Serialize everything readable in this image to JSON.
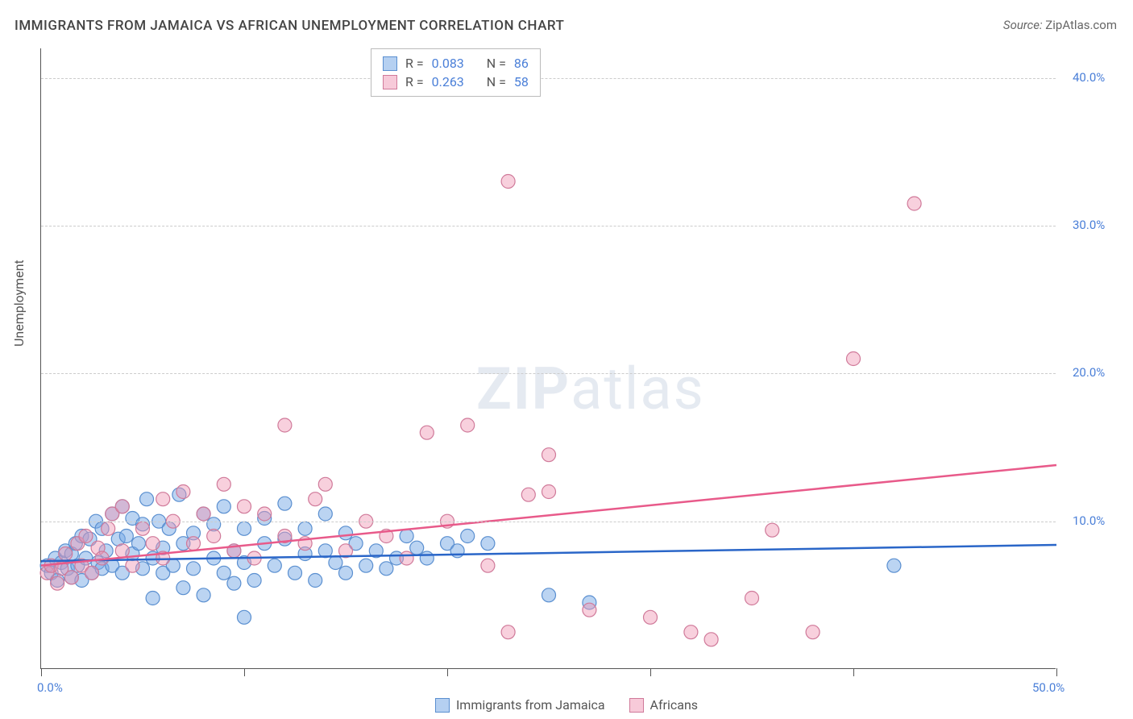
{
  "title": "IMMIGRANTS FROM JAMAICA VS AFRICAN UNEMPLOYMENT CORRELATION CHART",
  "source_label": "Source:",
  "source_value": "ZipAtlas.com",
  "y_axis_title": "Unemployment",
  "watermark_a": "ZIP",
  "watermark_b": "atlas",
  "chart": {
    "type": "scatter",
    "xlim": [
      0,
      50
    ],
    "ylim": [
      0,
      42
    ],
    "x_ticks": [
      0,
      10,
      20,
      30,
      40,
      50
    ],
    "x_tick_labels": [
      "0.0%",
      "",
      "",
      "",
      "",
      "50.0%"
    ],
    "y_ticks": [
      10,
      20,
      30,
      40
    ],
    "y_tick_labels": [
      "10.0%",
      "20.0%",
      "30.0%",
      "40.0%"
    ],
    "grid_color": "#cccccc",
    "background_color": "#ffffff",
    "axis_color": "#555555",
    "tick_label_color": "#4a7fd8",
    "marker_radius": 8.5,
    "marker_stroke_width": 1.2
  },
  "series": [
    {
      "name": "Immigrants from Jamaica",
      "color_fill": "rgba(120,170,230,0.5)",
      "color_stroke": "#5a8fd0",
      "trend": {
        "y_at_x0": 7.3,
        "y_at_xmax": 8.4,
        "stroke": "#2a66c8",
        "width": 2.5
      },
      "points": [
        [
          0.3,
          7.0
        ],
        [
          0.5,
          6.5
        ],
        [
          0.7,
          7.5
        ],
        [
          0.8,
          6.0
        ],
        [
          1.0,
          7.2
        ],
        [
          1.2,
          8.0
        ],
        [
          1.3,
          6.8
        ],
        [
          1.5,
          7.8
        ],
        [
          1.5,
          6.2
        ],
        [
          1.7,
          8.5
        ],
        [
          1.8,
          7.0
        ],
        [
          2.0,
          9.0
        ],
        [
          2.0,
          6.0
        ],
        [
          2.2,
          7.5
        ],
        [
          2.4,
          8.8
        ],
        [
          2.5,
          6.5
        ],
        [
          2.7,
          10.0
        ],
        [
          2.8,
          7.2
        ],
        [
          3.0,
          9.5
        ],
        [
          3.0,
          6.8
        ],
        [
          3.2,
          8.0
        ],
        [
          3.5,
          10.5
        ],
        [
          3.5,
          7.0
        ],
        [
          3.8,
          8.8
        ],
        [
          4.0,
          11.0
        ],
        [
          4.0,
          6.5
        ],
        [
          4.2,
          9.0
        ],
        [
          4.5,
          7.8
        ],
        [
          4.5,
          10.2
        ],
        [
          4.8,
          8.5
        ],
        [
          5.0,
          6.8
        ],
        [
          5.0,
          9.8
        ],
        [
          5.2,
          11.5
        ],
        [
          5.5,
          7.5
        ],
        [
          5.5,
          4.8
        ],
        [
          5.8,
          10.0
        ],
        [
          6.0,
          8.2
        ],
        [
          6.0,
          6.5
        ],
        [
          6.3,
          9.5
        ],
        [
          6.5,
          7.0
        ],
        [
          6.8,
          11.8
        ],
        [
          7.0,
          8.5
        ],
        [
          7.0,
          5.5
        ],
        [
          7.5,
          9.2
        ],
        [
          7.5,
          6.8
        ],
        [
          8.0,
          10.5
        ],
        [
          8.0,
          5.0
        ],
        [
          8.5,
          7.5
        ],
        [
          8.5,
          9.8
        ],
        [
          9.0,
          6.5
        ],
        [
          9.0,
          11.0
        ],
        [
          9.5,
          8.0
        ],
        [
          9.5,
          5.8
        ],
        [
          10.0,
          7.2
        ],
        [
          10.0,
          9.5
        ],
        [
          10.0,
          3.5
        ],
        [
          10.5,
          6.0
        ],
        [
          11.0,
          10.2
        ],
        [
          11.0,
          8.5
        ],
        [
          11.5,
          7.0
        ],
        [
          12.0,
          8.8
        ],
        [
          12.0,
          11.2
        ],
        [
          12.5,
          6.5
        ],
        [
          13.0,
          7.8
        ],
        [
          13.0,
          9.5
        ],
        [
          13.5,
          6.0
        ],
        [
          14.0,
          10.5
        ],
        [
          14.0,
          8.0
        ],
        [
          14.5,
          7.2
        ],
        [
          15.0,
          6.5
        ],
        [
          15.0,
          9.2
        ],
        [
          15.5,
          8.5
        ],
        [
          16.0,
          7.0
        ],
        [
          16.5,
          8.0
        ],
        [
          17.0,
          6.8
        ],
        [
          17.5,
          7.5
        ],
        [
          18.0,
          9.0
        ],
        [
          18.5,
          8.2
        ],
        [
          19.0,
          7.5
        ],
        [
          20.0,
          8.5
        ],
        [
          20.5,
          8.0
        ],
        [
          21.0,
          9.0
        ],
        [
          22.0,
          8.5
        ],
        [
          25.0,
          5.0
        ],
        [
          27.0,
          4.5
        ],
        [
          42.0,
          7.0
        ]
      ]
    },
    {
      "name": "Africans",
      "color_fill": "rgba(240,150,180,0.45)",
      "color_stroke": "#d07a9a",
      "trend": {
        "y_at_x0": 7.0,
        "y_at_xmax": 13.8,
        "stroke": "#e85a8a",
        "width": 2.5
      },
      "points": [
        [
          0.3,
          6.5
        ],
        [
          0.5,
          7.0
        ],
        [
          0.8,
          5.8
        ],
        [
          1.0,
          6.8
        ],
        [
          1.2,
          7.8
        ],
        [
          1.5,
          6.2
        ],
        [
          1.8,
          8.5
        ],
        [
          2.0,
          7.0
        ],
        [
          2.2,
          9.0
        ],
        [
          2.5,
          6.5
        ],
        [
          2.8,
          8.2
        ],
        [
          3.0,
          7.5
        ],
        [
          3.3,
          9.5
        ],
        [
          3.5,
          10.5
        ],
        [
          4.0,
          8.0
        ],
        [
          4.0,
          11.0
        ],
        [
          4.5,
          7.0
        ],
        [
          5.0,
          9.5
        ],
        [
          5.5,
          8.5
        ],
        [
          6.0,
          11.5
        ],
        [
          6.0,
          7.5
        ],
        [
          6.5,
          10.0
        ],
        [
          7.0,
          12.0
        ],
        [
          7.5,
          8.5
        ],
        [
          8.0,
          10.5
        ],
        [
          8.5,
          9.0
        ],
        [
          9.0,
          12.5
        ],
        [
          9.5,
          8.0
        ],
        [
          10.0,
          11.0
        ],
        [
          10.5,
          7.5
        ],
        [
          11.0,
          10.5
        ],
        [
          12.0,
          9.0
        ],
        [
          12.0,
          16.5
        ],
        [
          13.0,
          8.5
        ],
        [
          13.5,
          11.5
        ],
        [
          14.0,
          12.5
        ],
        [
          15.0,
          8.0
        ],
        [
          16.0,
          10.0
        ],
        [
          17.0,
          9.0
        ],
        [
          18.0,
          7.5
        ],
        [
          19.0,
          16.0
        ],
        [
          20.0,
          10.0
        ],
        [
          21.0,
          16.5
        ],
        [
          22.0,
          7.0
        ],
        [
          23.0,
          33.0
        ],
        [
          23.0,
          2.5
        ],
        [
          24.0,
          11.8
        ],
        [
          25.0,
          14.5
        ],
        [
          25.0,
          12.0
        ],
        [
          27.0,
          4.0
        ],
        [
          30.0,
          3.5
        ],
        [
          32.0,
          2.5
        ],
        [
          33.0,
          2.0
        ],
        [
          35.0,
          4.8
        ],
        [
          36.0,
          9.4
        ],
        [
          38.0,
          2.5
        ],
        [
          40.0,
          21.0
        ],
        [
          43.0,
          31.5
        ]
      ]
    }
  ],
  "stats": [
    {
      "r": "0.083",
      "n": "86"
    },
    {
      "r": "0.263",
      "n": "58"
    }
  ],
  "stat_labels": {
    "r": "R =",
    "n": "N ="
  },
  "legend": {
    "series1": "Immigrants from Jamaica",
    "series2": "Africans"
  }
}
